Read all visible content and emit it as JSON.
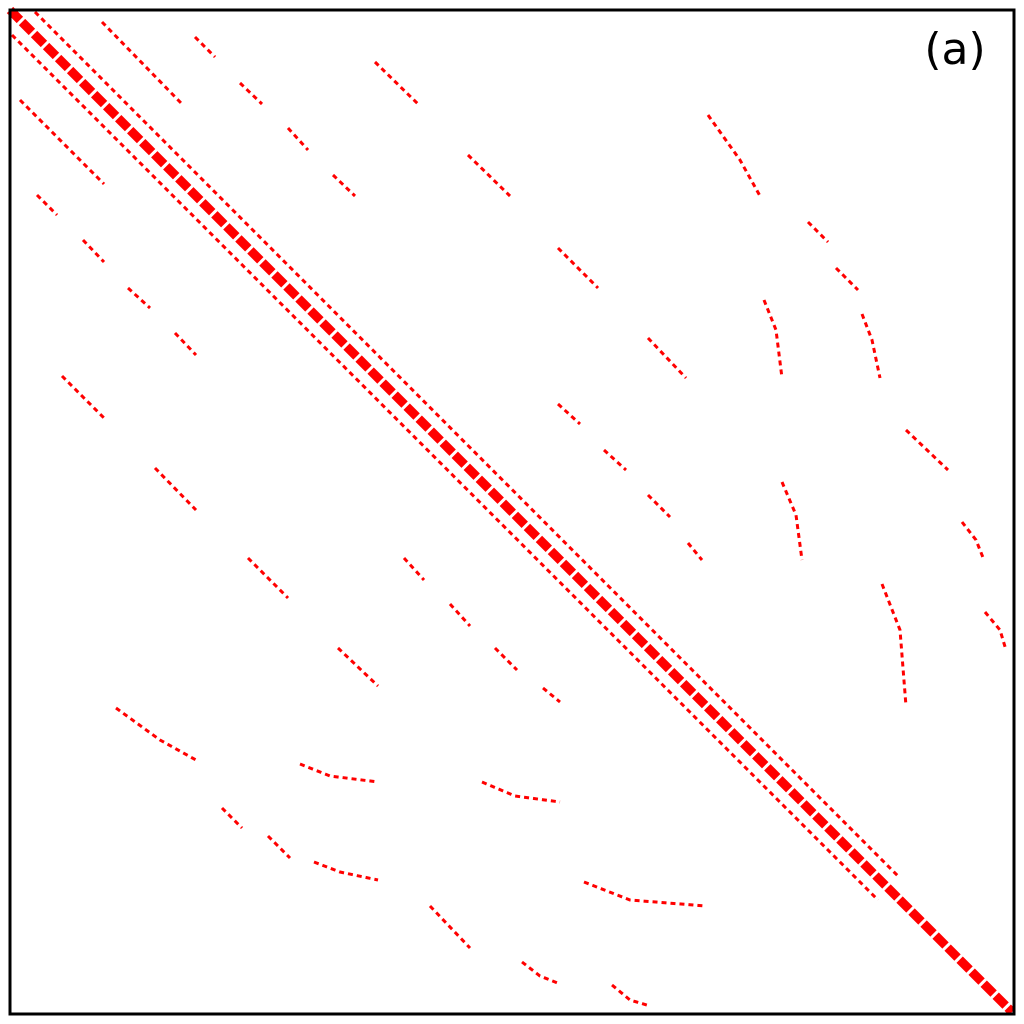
{
  "chart_data": {
    "type": "recurrence",
    "label": "(a)",
    "color": "#ff0000",
    "xlim": [
      10,
      1014
    ],
    "ylim": [
      1014,
      10
    ],
    "segments": [
      {
        "x": [
          10,
          1012
        ],
        "y": [
          10,
          1012
        ],
        "width": 9
      },
      {
        "x": [
          35,
          900
        ],
        "y": [
          12,
          878
        ],
        "width": 3
      },
      {
        "x": [
          12,
          878
        ],
        "y": [
          35,
          900
        ],
        "width": 3
      },
      {
        "x": [
          375,
          418
        ],
        "y": [
          62,
          104
        ],
        "width": 3
      },
      {
        "x": [
          195,
          215
        ],
        "y": [
          37,
          57
        ],
        "width": 3
      },
      {
        "x": [
          240,
          262
        ],
        "y": [
          83,
          104
        ],
        "width": 3
      },
      {
        "x": [
          288,
          308
        ],
        "y": [
          128,
          150
        ],
        "width": 3
      },
      {
        "x": [
          333,
          355
        ],
        "y": [
          175,
          196
        ],
        "width": 3
      },
      {
        "x": [
          468,
          510
        ],
        "y": [
          155,
          196
        ],
        "width": 3
      },
      {
        "x": [
          558,
          598
        ],
        "y": [
          248,
          288
        ],
        "width": 3
      },
      {
        "x": [
          648,
          686
        ],
        "y": [
          338,
          378
        ],
        "width": 3
      },
      {
        "x": [
          558,
          580
        ],
        "y": [
          404,
          424
        ],
        "width": 3
      },
      {
        "x": [
          604,
          626
        ],
        "y": [
          450,
          470
        ],
        "width": 3
      },
      {
        "x": [
          648,
          670
        ],
        "y": [
          495,
          517
        ],
        "width": 3
      },
      {
        "x": [
          688,
          702
        ],
        "y": [
          543,
          560
        ],
        "width": 3
      },
      {
        "x": [
          708,
          740,
          760
        ],
        "y": [
          115,
          160,
          196
        ],
        "width": 3
      },
      {
        "x": [
          808,
          828
        ],
        "y": [
          222,
          242
        ],
        "width": 3
      },
      {
        "x": [
          836,
          858
        ],
        "y": [
          268,
          290
        ],
        "width": 3
      },
      {
        "x": [
          862,
          872,
          880
        ],
        "y": [
          314,
          340,
          378
        ],
        "width": 3
      },
      {
        "x": [
          764,
          776,
          782
        ],
        "y": [
          300,
          330,
          378
        ],
        "width": 3
      },
      {
        "x": [
          906,
          948
        ],
        "y": [
          430,
          470
        ],
        "width": 3
      },
      {
        "x": [
          782,
          796,
          802
        ],
        "y": [
          482,
          515,
          560
        ],
        "width": 3
      },
      {
        "x": [
          962,
          976,
          984
        ],
        "y": [
          522,
          540,
          560
        ],
        "width": 3
      },
      {
        "x": [
          882,
          900,
          906
        ],
        "y": [
          584,
          630,
          706
        ],
        "width": 3
      },
      {
        "x": [
          985,
          1000,
          1006
        ],
        "y": [
          612,
          630,
          650
        ],
        "width": 3
      },
      {
        "x": [
          102,
          182
        ],
        "y": [
          22,
          104
        ],
        "width": 3
      },
      {
        "x": [
          37,
          57
        ],
        "y": [
          195,
          215
        ],
        "width": 3
      },
      {
        "x": [
          62,
          104
        ],
        "y": [
          376,
          418
        ],
        "width": 3
      },
      {
        "x": [
          83,
          104
        ],
        "y": [
          240,
          262
        ],
        "width": 3
      },
      {
        "x": [
          128,
          150
        ],
        "y": [
          288,
          308
        ],
        "width": 3
      },
      {
        "x": [
          175,
          196
        ],
        "y": [
          333,
          355
        ],
        "width": 3
      },
      {
        "x": [
          155,
          196
        ],
        "y": [
          468,
          510
        ],
        "width": 3
      },
      {
        "x": [
          248,
          288
        ],
        "y": [
          558,
          598
        ],
        "width": 3
      },
      {
        "x": [
          338,
          378
        ],
        "y": [
          648,
          686
        ],
        "width": 3
      },
      {
        "x": [
          404,
          424
        ],
        "y": [
          558,
          580
        ],
        "width": 3
      },
      {
        "x": [
          450,
          470
        ],
        "y": [
          604,
          626
        ],
        "width": 3
      },
      {
        "x": [
          495,
          517
        ],
        "y": [
          648,
          670
        ],
        "width": 3
      },
      {
        "x": [
          543,
          560
        ],
        "y": [
          688,
          702
        ],
        "width": 3
      },
      {
        "x": [
          116,
          160,
          196
        ],
        "y": [
          708,
          740,
          760
        ],
        "width": 3
      },
      {
        "x": [
          222,
          242
        ],
        "y": [
          808,
          828
        ],
        "width": 3
      },
      {
        "x": [
          268,
          290
        ],
        "y": [
          836,
          858
        ],
        "width": 3
      },
      {
        "x": [
          314,
          340,
          378
        ],
        "y": [
          862,
          872,
          880
        ],
        "width": 3
      },
      {
        "x": [
          300,
          330,
          378
        ],
        "y": [
          764,
          776,
          782
        ],
        "width": 3
      },
      {
        "x": [
          430,
          470
        ],
        "y": [
          906,
          948
        ],
        "width": 3
      },
      {
        "x": [
          482,
          515,
          560
        ],
        "y": [
          782,
          796,
          802
        ],
        "width": 3
      },
      {
        "x": [
          522,
          540,
          560
        ],
        "y": [
          962,
          976,
          984
        ],
        "width": 3
      },
      {
        "x": [
          584,
          630,
          706
        ],
        "y": [
          882,
          900,
          906
        ],
        "width": 3
      },
      {
        "x": [
          612,
          630,
          650
        ],
        "y": [
          985,
          1000,
          1006
        ],
        "width": 3
      },
      {
        "x": [
          20,
          104
        ],
        "y": [
          100,
          184
        ],
        "width": 3
      }
    ]
  }
}
